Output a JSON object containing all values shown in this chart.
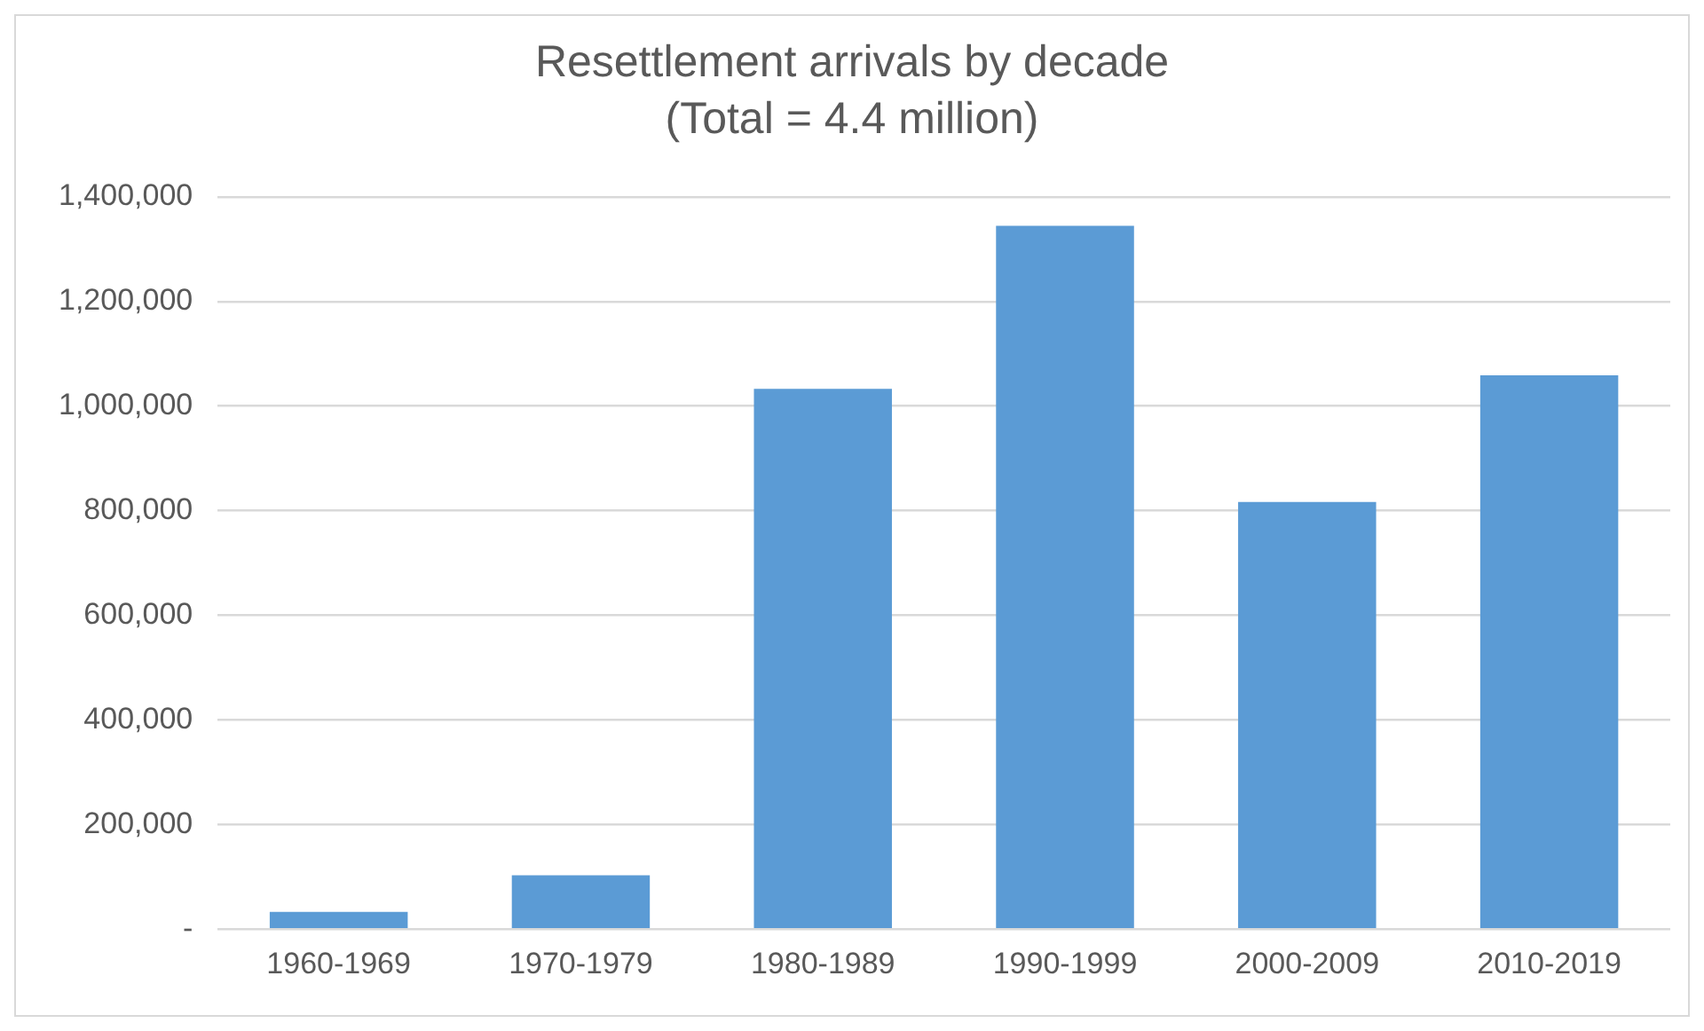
{
  "chart_data": {
    "type": "bar",
    "title": "Resettlement arrivals by decade",
    "subtitle": "(Total = 4.4 million)",
    "categories": [
      "1960-1969",
      "1970-1979",
      "1980-1989",
      "1990-1999",
      "2000-2009",
      "2010-2019"
    ],
    "values": [
      33000,
      103000,
      1033000,
      1345000,
      817000,
      1059000
    ],
    "color": "#5b9bd5",
    "ylim": [
      0,
      1400000
    ],
    "yticks": [
      {
        "value": 0,
        "label": "-"
      },
      {
        "value": 200000,
        "label": "200,000"
      },
      {
        "value": 400000,
        "label": "400,000"
      },
      {
        "value": 600000,
        "label": "600,000"
      },
      {
        "value": 800000,
        "label": "800,000"
      },
      {
        "value": 1000000,
        "label": "1,000,000"
      },
      {
        "value": 1200000,
        "label": "1,200,000"
      },
      {
        "value": 1400000,
        "label": "1,400,000"
      }
    ],
    "grid": "y",
    "legend": false
  }
}
